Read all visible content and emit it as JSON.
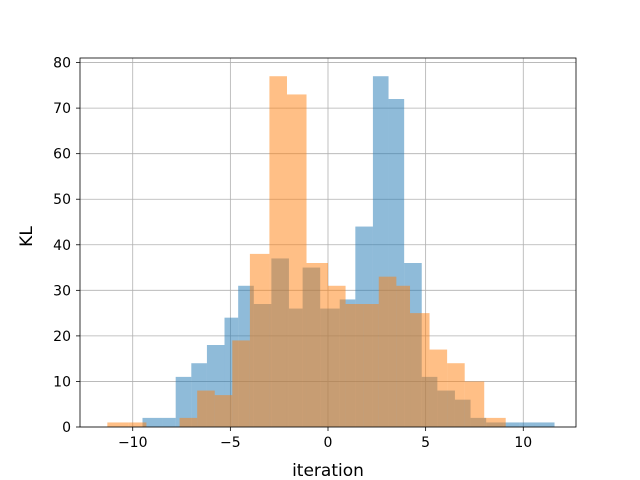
{
  "chart_data": {
    "type": "bar",
    "subtype": "overlapping-histogram",
    "xlabel": "iteration",
    "ylabel": "KL",
    "xlim": [
      -12.7,
      12.7
    ],
    "ylim": [
      0,
      81
    ],
    "grid": true,
    "x_ticks": [
      -10,
      -5,
      0,
      5,
      10
    ],
    "y_ticks": [
      0,
      10,
      20,
      30,
      40,
      50,
      60,
      70,
      80
    ],
    "colors": {
      "series_1": "#1f77b4",
      "series_2": "#ff7f0e",
      "alpha": 0.5
    },
    "series": [
      {
        "bin_edges": [
          -9.5,
          -8.5,
          -7.8,
          -7.0,
          -6.2,
          -5.3,
          -4.6,
          -3.8,
          -2.9,
          -2.0,
          -1.3,
          -0.4,
          0.6,
          1.4,
          2.3,
          3.1,
          3.9,
          4.8,
          5.6,
          6.5,
          7.3,
          8.1,
          9.0,
          9.8,
          10.6,
          11.6
        ],
        "counts": [
          2,
          2,
          11,
          14,
          18,
          24,
          31,
          27,
          37,
          26,
          35,
          26,
          28,
          44,
          77,
          72,
          36,
          11,
          8,
          6,
          2,
          1,
          1,
          1,
          1
        ]
      },
      {
        "bin_edges": [
          -11.3,
          -10.2,
          -9.3,
          -8.3,
          -7.6,
          -6.7,
          -5.8,
          -4.9,
          -4.0,
          -3.0,
          -2.1,
          -1.1,
          0,
          0.9,
          1.8,
          2.6,
          3.5,
          4.2,
          5.2,
          6.1,
          7.0,
          8.0,
          9.1
        ],
        "counts": [
          1,
          1,
          0,
          0,
          2,
          8,
          7,
          19,
          38,
          77,
          73,
          36,
          31,
          27,
          27,
          33,
          31,
          25,
          17,
          14,
          10,
          2
        ]
      }
    ]
  }
}
